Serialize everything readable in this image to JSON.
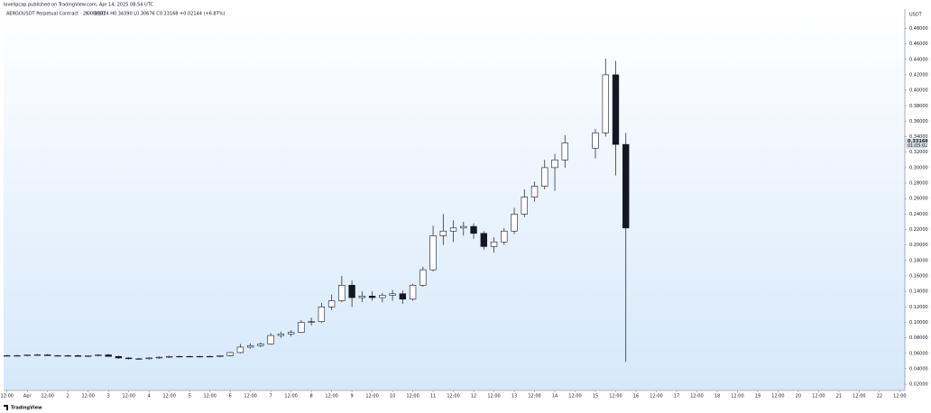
{
  "chart_data": {
    "type": "candlestick",
    "title": "lovelipcap published on TradingView.com, Apr 14, 2025 08:54 UTC",
    "subtitle": "AERGOUSDT Perpetual Contract · 2h · BYBIT",
    "ohlc_summary": "O0.31024 H0.34390 L0.30676 C0.33168 +0.02144 (+6.87%)",
    "y_axis_label": "USDT",
    "last_price": 0.33168,
    "countdown": "01:05:02",
    "footer": "TradingView",
    "up_color": "#ffffff",
    "down_color": "#131722",
    "border_color": "#131722",
    "xlim": [
      -14,
      519
    ],
    "ylim": [
      0.012,
      0.505
    ],
    "xticks": [
      {
        "value": -12,
        "label": "12:00"
      },
      {
        "value": 0,
        "label": "Apr"
      },
      {
        "value": 12,
        "label": "12:00"
      },
      {
        "value": 24,
        "label": "2"
      },
      {
        "value": 36,
        "label": "12:00"
      },
      {
        "value": 48,
        "label": "3"
      },
      {
        "value": 60,
        "label": "12:00"
      },
      {
        "value": 72,
        "label": "4"
      },
      {
        "value": 84,
        "label": "12:00"
      },
      {
        "value": 96,
        "label": "5"
      },
      {
        "value": 108,
        "label": "12:00"
      },
      {
        "value": 120,
        "label": "6"
      },
      {
        "value": 132,
        "label": "12:00"
      },
      {
        "value": 144,
        "label": "7"
      },
      {
        "value": 156,
        "label": "12:00"
      },
      {
        "value": 168,
        "label": "8"
      },
      {
        "value": 180,
        "label": "12:00"
      },
      {
        "value": 192,
        "label": "9"
      },
      {
        "value": 204,
        "label": "12:00"
      },
      {
        "value": 216,
        "label": "10"
      },
      {
        "value": 228,
        "label": "12:00"
      },
      {
        "value": 240,
        "label": "11"
      },
      {
        "value": 252,
        "label": "12:00"
      },
      {
        "value": 264,
        "label": "12"
      },
      {
        "value": 276,
        "label": "12:00"
      },
      {
        "value": 288,
        "label": "13"
      },
      {
        "value": 300,
        "label": "12:00"
      },
      {
        "value": 312,
        "label": "14"
      },
      {
        "value": 324,
        "label": "12:00"
      },
      {
        "value": 336,
        "label": "15"
      },
      {
        "value": 348,
        "label": "12:00"
      },
      {
        "value": 360,
        "label": "16"
      },
      {
        "value": 372,
        "label": "12:00"
      },
      {
        "value": 384,
        "label": "17"
      },
      {
        "value": 396,
        "label": "12:00"
      },
      {
        "value": 408,
        "label": "18"
      },
      {
        "value": 420,
        "label": "12:00"
      },
      {
        "value": 432,
        "label": "19"
      },
      {
        "value": 444,
        "label": "12:00"
      },
      {
        "value": 456,
        "label": "20"
      },
      {
        "value": 468,
        "label": "12:00"
      },
      {
        "value": 480,
        "label": "21"
      },
      {
        "value": 492,
        "label": "12:00"
      },
      {
        "value": 504,
        "label": "22"
      },
      {
        "value": 516,
        "label": "12:00"
      }
    ],
    "yticks": [
      {
        "value": 0.02,
        "label": "0.02000"
      },
      {
        "value": 0.04,
        "label": "0.04000"
      },
      {
        "value": 0.06,
        "label": "0.06000"
      },
      {
        "value": 0.08,
        "label": "0.08000"
      },
      {
        "value": 0.1,
        "label": "0.10000"
      },
      {
        "value": 0.12,
        "label": "0.12000"
      },
      {
        "value": 0.14,
        "label": "0.14000"
      },
      {
        "value": 0.16,
        "label": "0.16000"
      },
      {
        "value": 0.18,
        "label": "0.18000"
      },
      {
        "value": 0.2,
        "label": "0.20000"
      },
      {
        "value": 0.22,
        "label": "0.22000"
      },
      {
        "value": 0.24,
        "label": "0.24000"
      },
      {
        "value": 0.26,
        "label": "0.26000"
      },
      {
        "value": 0.28,
        "label": "0.28000"
      },
      {
        "value": 0.3,
        "label": "0.30000"
      },
      {
        "value": 0.32,
        "label": "0.32000"
      },
      {
        "value": 0.34,
        "label": "0.34000"
      },
      {
        "value": 0.36,
        "label": "0.36000"
      },
      {
        "value": 0.38,
        "label": "0.38000"
      },
      {
        "value": 0.4,
        "label": "0.40000"
      },
      {
        "value": 0.42,
        "label": "0.42000"
      },
      {
        "value": 0.44,
        "label": "0.44000"
      },
      {
        "value": 0.46,
        "label": "0.46000"
      },
      {
        "value": 0.48,
        "label": "0.48000"
      }
    ],
    "x": [
      -12,
      -6,
      0,
      6,
      12,
      18,
      24,
      30,
      36,
      42,
      48,
      54,
      60,
      66,
      72,
      78,
      84,
      90,
      96,
      102,
      108,
      114,
      120,
      126,
      132,
      138,
      144,
      150,
      156,
      162,
      168,
      174,
      180,
      186,
      192,
      198,
      204,
      210,
      216,
      222,
      228,
      234,
      240,
      246,
      252,
      258,
      264,
      270,
      276,
      282,
      288,
      294,
      300,
      306,
      312,
      318,
      336,
      342,
      348,
      354
    ],
    "open": [
      0.057,
      0.057,
      0.057,
      0.058,
      0.058,
      0.057,
      0.057,
      0.057,
      0.056,
      0.057,
      0.058,
      0.056,
      0.054,
      0.053,
      0.053,
      0.054,
      0.055,
      0.056,
      0.056,
      0.056,
      0.056,
      0.056,
      0.057,
      0.061,
      0.068,
      0.07,
      0.072,
      0.083,
      0.085,
      0.087,
      0.1,
      0.101,
      0.12,
      0.128,
      0.148,
      0.132,
      0.134,
      0.132,
      0.135,
      0.137,
      0.13,
      0.148,
      0.168,
      0.212,
      0.218,
      0.222,
      0.224,
      0.215,
      0.198,
      0.204,
      0.218,
      0.24,
      0.262,
      0.276,
      0.3,
      0.31,
      0.325,
      0.345,
      0.42,
      0.33
    ],
    "high": [
      0.058,
      0.058,
      0.058,
      0.059,
      0.059,
      0.058,
      0.058,
      0.058,
      0.057,
      0.059,
      0.059,
      0.057,
      0.055,
      0.054,
      0.055,
      0.056,
      0.057,
      0.057,
      0.057,
      0.057,
      0.057,
      0.057,
      0.062,
      0.072,
      0.073,
      0.074,
      0.086,
      0.088,
      0.09,
      0.103,
      0.106,
      0.125,
      0.136,
      0.16,
      0.154,
      0.14,
      0.14,
      0.138,
      0.142,
      0.141,
      0.15,
      0.172,
      0.225,
      0.24,
      0.232,
      0.23,
      0.228,
      0.218,
      0.21,
      0.222,
      0.248,
      0.272,
      0.282,
      0.31,
      0.318,
      0.342,
      0.35,
      0.441,
      0.438,
      0.345
    ],
    "low": [
      0.056,
      0.056,
      0.056,
      0.057,
      0.057,
      0.056,
      0.056,
      0.056,
      0.055,
      0.056,
      0.056,
      0.053,
      0.052,
      0.052,
      0.052,
      0.053,
      0.054,
      0.055,
      0.055,
      0.055,
      0.055,
      0.055,
      0.056,
      0.06,
      0.066,
      0.068,
      0.071,
      0.08,
      0.082,
      0.086,
      0.096,
      0.099,
      0.116,
      0.126,
      0.12,
      0.126,
      0.128,
      0.126,
      0.128,
      0.124,
      0.128,
      0.146,
      0.166,
      0.2,
      0.204,
      0.212,
      0.208,
      0.194,
      0.19,
      0.2,
      0.214,
      0.236,
      0.256,
      0.272,
      0.27,
      0.3,
      0.312,
      0.34,
      0.29,
      0.049
    ],
    "close": [
      0.057,
      0.057,
      0.058,
      0.058,
      0.057,
      0.057,
      0.057,
      0.056,
      0.057,
      0.058,
      0.056,
      0.054,
      0.053,
      0.053,
      0.054,
      0.055,
      0.056,
      0.056,
      0.056,
      0.056,
      0.056,
      0.057,
      0.061,
      0.068,
      0.07,
      0.072,
      0.083,
      0.085,
      0.087,
      0.1,
      0.101,
      0.12,
      0.128,
      0.148,
      0.132,
      0.134,
      0.132,
      0.135,
      0.137,
      0.13,
      0.148,
      0.168,
      0.212,
      0.218,
      0.222,
      0.224,
      0.215,
      0.198,
      0.204,
      0.218,
      0.24,
      0.262,
      0.276,
      0.3,
      0.31,
      0.332,
      0.345,
      0.42,
      0.33,
      0.222
    ]
  }
}
